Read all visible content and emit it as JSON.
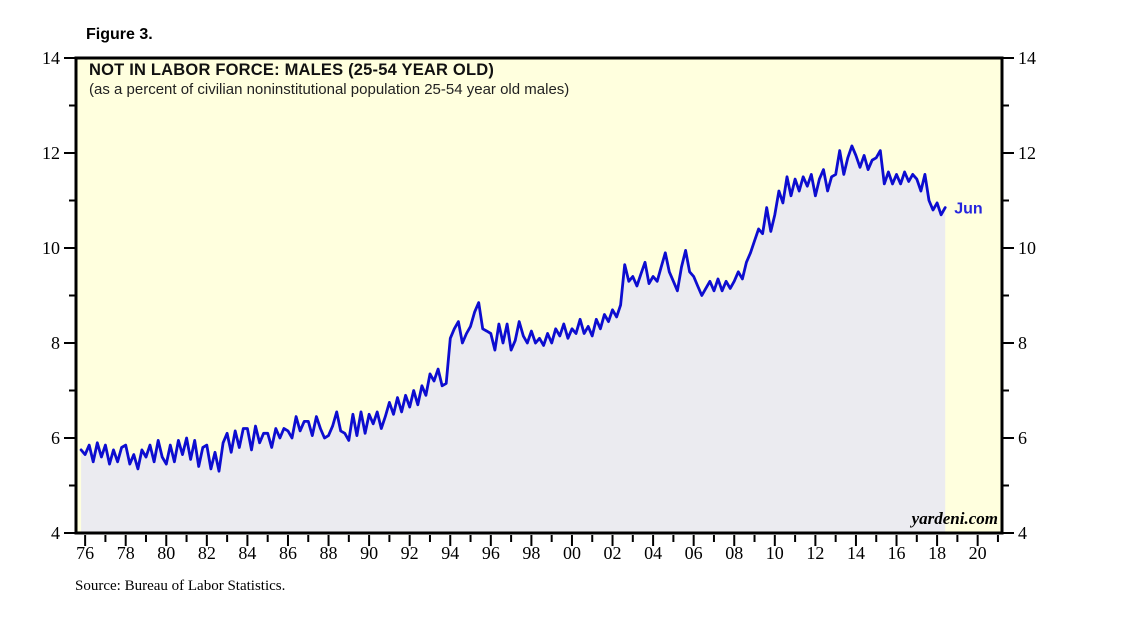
{
  "figure_label": "Figure 3.",
  "colors": {
    "plot_bg": "#FFFFDE",
    "line": "#0D0DD0",
    "area_fill": "#EBEBF0",
    "axis": "#000000",
    "end_label": "#2525DD",
    "page_bg": "#FFFFFF"
  },
  "chart_data": {
    "type": "line",
    "title": "NOT IN LABOR FORCE: MALES (25-54 YEAR OLD)",
    "subtitle": "(as a percent of civilian noninstitutional population 25-54 year old males)",
    "source": "Source: Bureau of Labor Statistics.",
    "watermark": "yardeni.com",
    "series_name": "Not in labor force, males 25-54 (% of population)",
    "last_point_label": "Jun",
    "grid": false,
    "legend": "none",
    "area_fill": true,
    "y_domain": [
      4,
      14
    ],
    "y_ticks_major": [
      4,
      6,
      8,
      10,
      12,
      14
    ],
    "y_ticks_minor": [
      5,
      7,
      9,
      11,
      13
    ],
    "x_domain": [
      1975.55,
      2021.2
    ],
    "x_ticks_major": [
      {
        "year": 1976,
        "label": "76"
      },
      {
        "year": 1978,
        "label": "78"
      },
      {
        "year": 1980,
        "label": "80"
      },
      {
        "year": 1982,
        "label": "82"
      },
      {
        "year": 1984,
        "label": "84"
      },
      {
        "year": 1986,
        "label": "86"
      },
      {
        "year": 1988,
        "label": "88"
      },
      {
        "year": 1990,
        "label": "90"
      },
      {
        "year": 1992,
        "label": "92"
      },
      {
        "year": 1994,
        "label": "94"
      },
      {
        "year": 1996,
        "label": "96"
      },
      {
        "year": 1998,
        "label": "98"
      },
      {
        "year": 2000,
        "label": "00"
      },
      {
        "year": 2002,
        "label": "02"
      },
      {
        "year": 2004,
        "label": "04"
      },
      {
        "year": 2006,
        "label": "06"
      },
      {
        "year": 2008,
        "label": "08"
      },
      {
        "year": 2010,
        "label": "10"
      },
      {
        "year": 2012,
        "label": "12"
      },
      {
        "year": 2014,
        "label": "14"
      },
      {
        "year": 2016,
        "label": "16"
      },
      {
        "year": 2018,
        "label": "18"
      },
      {
        "year": 2020,
        "label": "20"
      }
    ],
    "x_minor_start": 1977,
    "x_minor_step": 2,
    "x_start": 1975.8,
    "x_step": 0.2,
    "values": [
      5.75,
      5.65,
      5.85,
      5.5,
      5.9,
      5.6,
      5.85,
      5.45,
      5.75,
      5.5,
      5.8,
      5.85,
      5.45,
      5.65,
      5.35,
      5.75,
      5.6,
      5.85,
      5.5,
      5.95,
      5.6,
      5.45,
      5.85,
      5.5,
      5.95,
      5.65,
      6.0,
      5.55,
      5.95,
      5.4,
      5.8,
      5.85,
      5.35,
      5.7,
      5.3,
      5.9,
      6.1,
      5.7,
      6.15,
      5.8,
      6.2,
      6.2,
      5.75,
      6.25,
      5.9,
      6.1,
      6.1,
      5.8,
      6.2,
      6.0,
      6.2,
      6.15,
      6.0,
      6.45,
      6.15,
      6.35,
      6.35,
      6.05,
      6.45,
      6.2,
      6.0,
      6.05,
      6.25,
      6.55,
      6.15,
      6.1,
      5.95,
      6.5,
      6.05,
      6.55,
      6.1,
      6.5,
      6.3,
      6.55,
      6.2,
      6.45,
      6.75,
      6.5,
      6.85,
      6.55,
      6.9,
      6.65,
      7.0,
      6.7,
      7.1,
      6.9,
      7.35,
      7.2,
      7.45,
      7.1,
      7.15,
      8.1,
      8.3,
      8.45,
      8.0,
      8.2,
      8.35,
      8.65,
      8.85,
      8.3,
      8.25,
      8.2,
      7.85,
      8.4,
      8.0,
      8.4,
      7.85,
      8.05,
      8.45,
      8.15,
      8.0,
      8.25,
      8.0,
      8.1,
      7.95,
      8.2,
      8.0,
      8.3,
      8.15,
      8.4,
      8.1,
      8.3,
      8.2,
      8.5,
      8.2,
      8.35,
      8.15,
      8.5,
      8.3,
      8.6,
      8.45,
      8.7,
      8.55,
      8.8,
      9.65,
      9.3,
      9.4,
      9.2,
      9.45,
      9.7,
      9.25,
      9.4,
      9.3,
      9.6,
      9.9,
      9.5,
      9.3,
      9.1,
      9.6,
      9.95,
      9.5,
      9.4,
      9.2,
      9.0,
      9.15,
      9.3,
      9.1,
      9.35,
      9.1,
      9.3,
      9.15,
      9.3,
      9.5,
      9.35,
      9.7,
      9.9,
      10.15,
      10.4,
      10.3,
      10.85,
      10.35,
      10.7,
      11.2,
      10.95,
      11.5,
      11.1,
      11.45,
      11.2,
      11.5,
      11.3,
      11.55,
      11.1,
      11.45,
      11.65,
      11.2,
      11.5,
      11.55,
      12.05,
      11.55,
      11.9,
      12.15,
      11.95,
      11.7,
      11.95,
      11.65,
      11.85,
      11.9,
      12.05,
      11.35,
      11.6,
      11.35,
      11.55,
      11.35,
      11.6,
      11.4,
      11.55,
      11.45,
      11.2,
      11.55,
      11.0,
      10.8,
      10.95,
      10.7,
      10.85
    ]
  }
}
